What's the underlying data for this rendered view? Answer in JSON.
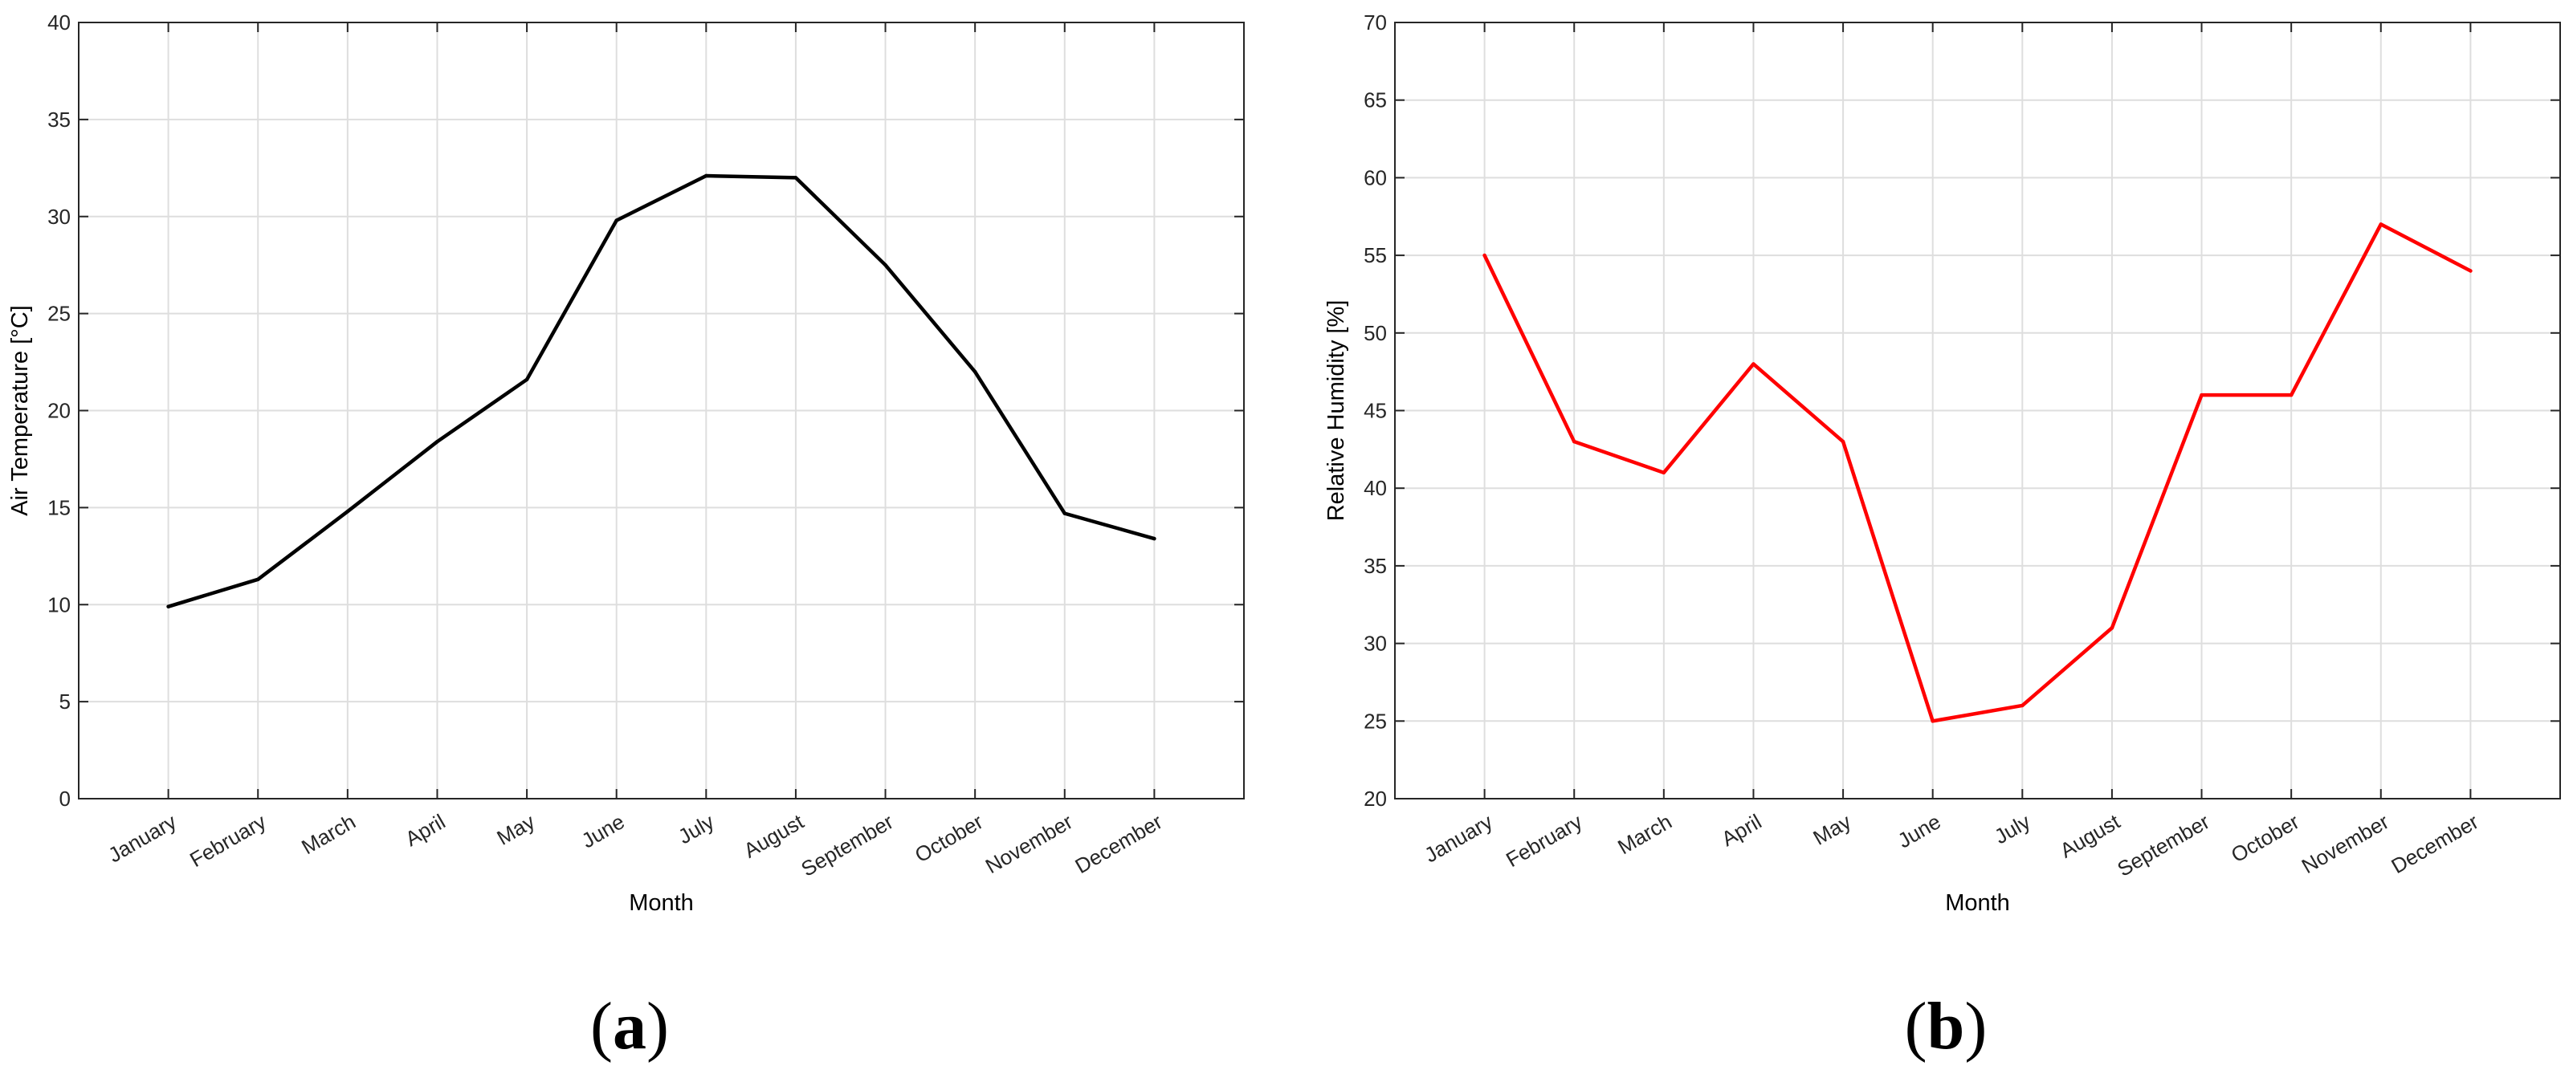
{
  "chart_data": [
    {
      "type": "line",
      "panel_label": "(a)",
      "categories": [
        "January",
        "February",
        "March",
        "April",
        "May",
        "June",
        "July",
        "August",
        "September",
        "October",
        "November",
        "December"
      ],
      "series": [
        {
          "values": [
            9.9,
            11.3,
            14.8,
            18.4,
            21.6,
            29.8,
            32.1,
            32.0,
            27.5,
            22.0,
            14.7,
            13.4
          ],
          "color": "#000000"
        }
      ],
      "xlabel": "Month",
      "ylabel": "Air Temperature [°C]",
      "ylim": [
        0,
        40
      ],
      "yticks": [
        0,
        5,
        10,
        15,
        20,
        25,
        30,
        35,
        40
      ],
      "grid": true
    },
    {
      "type": "line",
      "panel_label": "(b)",
      "categories": [
        "January",
        "February",
        "March",
        "April",
        "May",
        "June",
        "July",
        "August",
        "September",
        "October",
        "November",
        "December"
      ],
      "series": [
        {
          "values": [
            55,
            43,
            41,
            48,
            43,
            25,
            26,
            31,
            46,
            46,
            57,
            54
          ],
          "color": "#ff0000"
        }
      ],
      "xlabel": "Month",
      "ylabel": "Relative Humidity [%]",
      "ylim": [
        20,
        70
      ],
      "yticks": [
        20,
        25,
        30,
        35,
        40,
        45,
        50,
        55,
        60,
        65,
        70
      ],
      "grid": true
    }
  ]
}
